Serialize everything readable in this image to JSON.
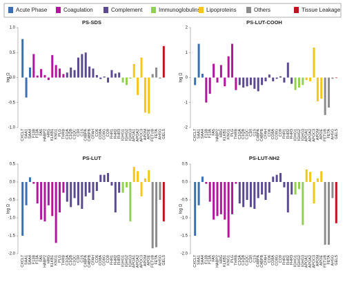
{
  "legend": [
    {
      "name": "Acute Phase",
      "color": "#3b6fb4"
    },
    {
      "name": "Coagulation",
      "color": "#b0179b"
    },
    {
      "name": "Complement",
      "color": "#5c4a90"
    },
    {
      "name": "Immunoglobulins",
      "color": "#92d050"
    },
    {
      "name": "Lipoproteins",
      "color": "#f5c518"
    },
    {
      "name": "Others",
      "color": "#8c8c8c"
    },
    {
      "name": "Tissue Leakage",
      "color": "#c0141c"
    }
  ],
  "bar_groups": [
    0,
    0,
    0,
    1,
    1,
    1,
    1,
    1,
    1,
    1,
    1,
    1,
    2,
    2,
    2,
    2,
    2,
    2,
    2,
    2,
    2,
    2,
    2,
    2,
    2,
    2,
    2,
    3,
    3,
    3,
    4,
    4,
    4,
    4,
    4,
    5,
    5,
    5,
    6
  ],
  "chart_data": [
    {
      "type": "bar",
      "title": "PS-SDS",
      "ylabel": "log Ω",
      "categories": [
        "CXCL7",
        "SAA1",
        "SAA4",
        "F13B",
        "F13A",
        "FA5",
        "HABP2",
        "HRG",
        "KLKB1",
        "KNG1",
        "PLG",
        "THRB",
        "C1QA",
        "C1QB",
        "C1QC",
        "C1R",
        "C1S",
        "C4BPA",
        "C4BPB",
        "CFAH",
        "CO6",
        "CO8A",
        "CO8G",
        "CO9",
        "FHR1",
        "FHR2",
        "FHR3",
        "IGHG1",
        "IGHG2",
        "IGHG3",
        "APOA1",
        "APOA2",
        "APOC3",
        "APOM",
        "APOE",
        "FETUB",
        "FETA",
        "AHSG",
        "GELS"
      ],
      "values": [
        0.77,
        -0.4,
        0.2,
        0.47,
        0.04,
        0.17,
        0.05,
        -0.05,
        0.45,
        0.25,
        0.18,
        0.07,
        0.1,
        0.2,
        0.15,
        0.4,
        0.47,
        0.5,
        0.22,
        0.18,
        0.05,
        -0.03,
        0.02,
        -0.1,
        0.15,
        0.08,
        0.1,
        -0.1,
        -0.15,
        -0.02,
        0.27,
        -0.35,
        0.4,
        -0.7,
        -0.72,
        0.07,
        0.2,
        -0.02,
        0.63
      ],
      "ylim": [
        -1,
        1
      ],
      "yticks": [
        {
          "value": 1,
          "label": "1.0"
        },
        0.5,
        {
          "value": 0,
          "label": "0.0"
        },
        -0.5,
        {
          "value": -1,
          "label": "-1.0"
        }
      ]
    },
    {
      "type": "bar",
      "title": "PS-LUT-COOH",
      "ylabel": "log Ω",
      "categories": [
        "CXCL7",
        "SAA1",
        "SAA4",
        "F13B",
        "F13A",
        "FA5",
        "HABP2",
        "HRG",
        "KLKB1",
        "KNG1",
        "PLG",
        "THRB",
        "C1QA",
        "C1QB",
        "C1QC",
        "C1R",
        "C1S",
        "C4BPA",
        "C4BPB",
        "CFAH",
        "CO6",
        "CO8A",
        "CO8G",
        "CO9",
        "FHR1",
        "FHR2",
        "FHR3",
        "IGHG1",
        "IGHG2",
        "IGHG3",
        "APOA1",
        "APOA2",
        "APOC3",
        "APOM",
        "APOE",
        "FETUB",
        "FETA",
        "AHSG",
        "GELS"
      ],
      "values": [
        -0.3,
        1.35,
        0.15,
        -1,
        -0.65,
        0.55,
        -0.2,
        0.5,
        -0.35,
        0.85,
        1.35,
        -0.5,
        -0.3,
        -0.4,
        -0.35,
        -0.3,
        -0.45,
        -0.55,
        -0.3,
        -0.15,
        0.12,
        -0.15,
        -0.05,
        0.05,
        -0.2,
        0.6,
        -0.25,
        -0.5,
        -0.4,
        -0.3,
        -0.1,
        -0.15,
        1.2,
        -0.95,
        -0.85,
        -1.5,
        -1.2,
        -0.05,
        -0.02
      ],
      "ylim": [
        -2,
        2
      ],
      "yticks": [
        2,
        1,
        0,
        -1,
        -2
      ]
    },
    {
      "type": "bar",
      "title": "PS-LUT",
      "ylabel": "log Ω",
      "categories": [
        "CXCL7",
        "SAA1",
        "SAA4",
        "F13B",
        "F13A",
        "FA5",
        "HABP2",
        "HRG",
        "KLKB1",
        "KNG1",
        "PLG",
        "THRB",
        "C1QA",
        "C1QB",
        "C1QC",
        "C1R",
        "C1S",
        "C4BPA",
        "C4BPB",
        "CFAH",
        "CO6",
        "CO8A",
        "CO8G",
        "CO9",
        "FHR1",
        "FHR2",
        "FHR3",
        "IGHG1",
        "IGHG2",
        "IGHG3",
        "APOA1",
        "APOA2",
        "APOC3",
        "APOM",
        "APOE",
        "FETUB",
        "FETA",
        "AHSG",
        "GELS"
      ],
      "values": [
        -1.5,
        -0.65,
        0.13,
        -0.05,
        -0.6,
        -1.05,
        -1.1,
        -0.65,
        -0.95,
        -1.7,
        -0.85,
        -0.3,
        -0.55,
        -0.7,
        -0.45,
        -0.65,
        -0.75,
        -0.4,
        -0.3,
        -0.5,
        -0.25,
        0.2,
        0.2,
        0.25,
        -0.1,
        -0.85,
        -0.3,
        -0.3,
        -0.15,
        -1.1,
        0.42,
        0.3,
        -0.4,
        0.1,
        0.33,
        -1.85,
        -1.82,
        -0.5,
        -1.1
      ],
      "ylim": [
        -2,
        0.5
      ],
      "yticks": [
        0.5,
        {
          "value": 0,
          "label": "0.0"
        },
        -0.5,
        {
          "value": -1,
          "label": "-1.0"
        },
        -1.5,
        {
          "value": -2,
          "label": "-2.0"
        }
      ]
    },
    {
      "type": "bar",
      "title": "PS-LUT-NH2",
      "ylabel": "log Ω",
      "categories": [
        "CXCL7",
        "SAA1",
        "SAA4",
        "F13B",
        "F13A",
        "FA5",
        "HABP2",
        "HRG",
        "KLKB1",
        "KNG1",
        "PLG",
        "THRB",
        "C1QA",
        "C1QB",
        "C1QC",
        "C1R",
        "C1S",
        "C4BPA",
        "C4BPB",
        "CFAH",
        "CO6",
        "CO8A",
        "CO8G",
        "CO9",
        "FHR1",
        "FHR2",
        "FHR3",
        "IGHG1",
        "IGHG2",
        "IGHG3",
        "APOA1",
        "APOA2",
        "APOC3",
        "APOM",
        "APOE",
        "FETUB",
        "FETA",
        "AHSG",
        "GELS"
      ],
      "values": [
        -1.5,
        -0.65,
        0.15,
        -0.05,
        -0.55,
        -1.05,
        -0.95,
        -0.9,
        -1.05,
        -1.55,
        -0.9,
        -0.05,
        -0.6,
        -0.7,
        -0.5,
        -0.7,
        -0.75,
        -0.45,
        -0.35,
        -0.5,
        -0.3,
        0.15,
        0.2,
        0.25,
        -0.15,
        -0.85,
        -0.35,
        -0.35,
        -0.2,
        -1.2,
        0.35,
        0.28,
        -0.6,
        0.1,
        0.3,
        -1.75,
        -1.75,
        -0.45,
        -1.15
      ],
      "ylim": [
        -2,
        0.5
      ],
      "yticks": [
        0.5,
        {
          "value": 0,
          "label": "0.0"
        },
        -0.5,
        {
          "value": -1,
          "label": "-1.0"
        },
        -1.5,
        {
          "value": -2,
          "label": "-2.0"
        }
      ]
    }
  ]
}
